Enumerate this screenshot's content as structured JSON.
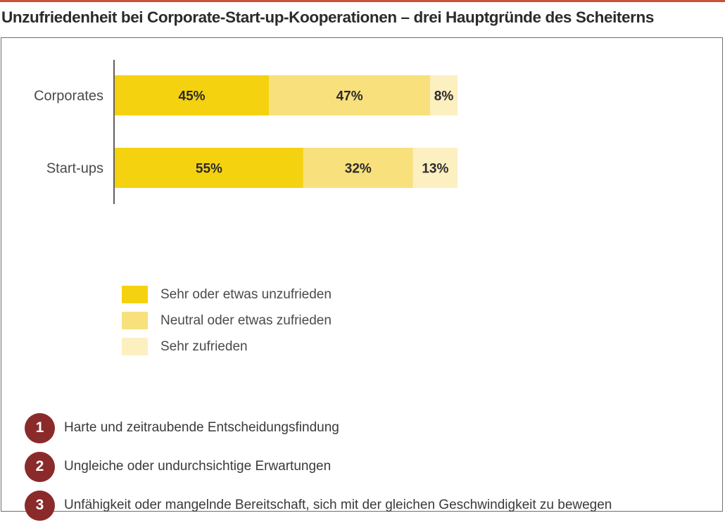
{
  "title": "Unzufriedenheit bei Corporate-Start-up-Kooperationen – drei Hauptgründe des Scheiterns",
  "chart_data": {
    "type": "bar",
    "orientation": "horizontal",
    "stacked": true,
    "categories": [
      "Corporates",
      "Start-ups"
    ],
    "series": [
      {
        "name": "Sehr oder etwas unzufrieden",
        "values": [
          45,
          55
        ],
        "labels": [
          "45%",
          "55%"
        ],
        "color": "#f5d20f"
      },
      {
        "name": "Neutral oder etwas zufrieden",
        "values": [
          47,
          32
        ],
        "labels": [
          "47%",
          "32%"
        ],
        "color": "#f8e07c"
      },
      {
        "name": "Sehr zufrieden",
        "values": [
          8,
          13
        ],
        "labels": [
          "8%",
          "13%"
        ],
        "color": "#fcefc0"
      }
    ],
    "xlim": [
      0,
      100
    ],
    "grid": false,
    "legend": "bottom-left"
  },
  "reasons": [
    {
      "number": "1",
      "text": "Harte und zeitraubende Entscheidungsfindung"
    },
    {
      "number": "2",
      "text": "Ungleiche oder undurchsichtige Erwartungen"
    },
    {
      "number": "3",
      "text": "Unfähigkeit oder mangelnde Bereitschaft, sich mit der gleichen Geschwindigkeit zu bewegen"
    }
  ]
}
